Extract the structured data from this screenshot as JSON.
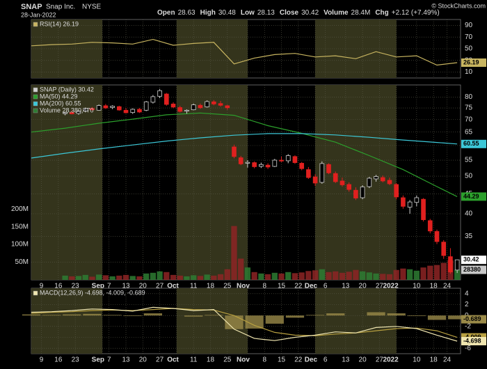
{
  "header": {
    "symbol": "SNAP",
    "name": "Snap Inc.",
    "exchange": "NYSE",
    "date": "28-Jan-2022",
    "quote": [
      {
        "label": "Open",
        "value": "28.63"
      },
      {
        "label": "High",
        "value": "30.48"
      },
      {
        "label": "Low",
        "value": "28.13"
      },
      {
        "label": "Close",
        "value": "30.42"
      },
      {
        "label": "Volume",
        "value": "28.4M"
      },
      {
        "label": "Chg",
        "value": "+2.12 (+7.49%)"
      }
    ],
    "watermark": "© StockCharts.com"
  },
  "chart_data": [
    {
      "type": "line",
      "xlim": [
        0,
        127
      ],
      "ylim": [
        0,
        100
      ],
      "yticks": [
        10,
        30,
        50,
        70,
        90
      ],
      "x": [
        0,
        6,
        12,
        18,
        24,
        30,
        36,
        42,
        48,
        54,
        60,
        66,
        72,
        78,
        84,
        90,
        96,
        102,
        108,
        114,
        120,
        126
      ],
      "series": [
        {
          "name": "RSI(14) 26.19",
          "color": "#c8b560",
          "last_label": "26.19",
          "values": [
            55,
            57,
            58,
            61,
            60,
            58,
            66,
            56,
            59,
            61,
            24,
            34,
            40,
            42,
            36,
            38,
            33,
            45,
            36,
            38,
            22,
            26.19
          ]
        }
      ]
    },
    {
      "type": "candlestick",
      "log_scale": true,
      "grid": true,
      "xlim": [
        0,
        127
      ],
      "ylim": [
        27,
        86
      ],
      "yticks": [
        30,
        35,
        40,
        45,
        50,
        55,
        60,
        65,
        70,
        75,
        80
      ],
      "xticks": [
        {
          "value": 3,
          "label": "9"
        },
        {
          "value": 8,
          "label": "16"
        },
        {
          "value": 13,
          "label": "23"
        },
        {
          "value": 21,
          "label": "Sep"
        },
        {
          "value": 23,
          "label": "7"
        },
        {
          "value": 28,
          "label": "13"
        },
        {
          "value": 33,
          "label": "20"
        },
        {
          "value": 38,
          "label": "27"
        },
        {
          "value": 43,
          "label": "Oct"
        },
        {
          "value": 48,
          "label": "11"
        },
        {
          "value": 53,
          "label": "18"
        },
        {
          "value": 58,
          "label": "25"
        },
        {
          "value": 64,
          "label": "Nov"
        },
        {
          "value": 69,
          "label": "8"
        },
        {
          "value": 74,
          "label": "15"
        },
        {
          "value": 79,
          "label": "22"
        },
        {
          "value": 84,
          "label": "Dec"
        },
        {
          "value": 87,
          "label": "6"
        },
        {
          "value": 93,
          "label": "13"
        },
        {
          "value": 98,
          "label": "20"
        },
        {
          "value": 103,
          "label": "27"
        },
        {
          "value": 108,
          "label": "2022"
        },
        {
          "value": 114,
          "label": "10"
        },
        {
          "value": 119,
          "label": "18"
        },
        {
          "value": 123,
          "label": "24"
        }
      ],
      "x": [
        10,
        12,
        14,
        16,
        18,
        20,
        22,
        24,
        26,
        28,
        30,
        32,
        34,
        36,
        38,
        40,
        42,
        44,
        46,
        48,
        50,
        52,
        54,
        56,
        58,
        60,
        62,
        64,
        66,
        68,
        70,
        72,
        74,
        76,
        78,
        80,
        82,
        84,
        86,
        88,
        90,
        92,
        94,
        96,
        98,
        100,
        102,
        104,
        106,
        108,
        110,
        112,
        114,
        116,
        118,
        120,
        122,
        124,
        126
      ],
      "series": [
        {
          "name": "SNAP (Daily) 30.42",
          "color": "#d0d0d0",
          "up_color": "#000000",
          "down_color": "#e0201f",
          "last_label": "30.42",
          "open": [
            72.5,
            73.0,
            72.6,
            73.6,
            74.8,
            74.0,
            76.0,
            75.2,
            75.6,
            74.0,
            73.0,
            74.4,
            74.0,
            77.6,
            80.4,
            81.5,
            76.8,
            75.2,
            73.6,
            74.2,
            76.2,
            75.5,
            77.8,
            77.0,
            76.0,
            59.5,
            55.8,
            54.0,
            54.2,
            53.0,
            53.4,
            53.0,
            55.0,
            54.8,
            56.2,
            54.0,
            52.0,
            49.8,
            48.2,
            53.6,
            50.8,
            48.6,
            47.6,
            46.0,
            44.0,
            47.0,
            49.2,
            49.6,
            48.8,
            47.6,
            44.0,
            41.6,
            42.8,
            43.6,
            38.4,
            36.0,
            33.8,
            31.0,
            28.63
          ],
          "high": [
            73.4,
            73.8,
            74.0,
            75.2,
            75.4,
            76.6,
            76.8,
            76.2,
            76.0,
            75.0,
            74.8,
            75.0,
            78.2,
            81.0,
            84.0,
            82.0,
            77.6,
            76.0,
            74.4,
            77.0,
            77.0,
            78.5,
            78.6,
            78.2,
            76.4,
            60.3,
            56.4,
            55.0,
            54.6,
            54.2,
            54.0,
            55.4,
            56.2,
            57.0,
            56.6,
            54.4,
            52.8,
            50.6,
            54.6,
            54.0,
            51.4,
            49.6,
            48.2,
            46.8,
            47.4,
            49.8,
            50.4,
            50.2,
            49.6,
            48.0,
            44.6,
            43.4,
            44.6,
            43.9,
            38.8,
            36.4,
            34.2,
            32.6,
            30.48
          ],
          "low": [
            71.8,
            72.2,
            72.0,
            73.2,
            73.9,
            73.8,
            74.6,
            74.5,
            73.8,
            72.6,
            72.4,
            72.8,
            73.6,
            77.0,
            79.5,
            76.0,
            74.9,
            73.0,
            72.5,
            74.0,
            74.6,
            75.2,
            76.2,
            75.6,
            74.2,
            55.6,
            53.4,
            52.6,
            52.4,
            52.5,
            52.2,
            52.8,
            54.4,
            54.0,
            53.8,
            51.8,
            49.2,
            47.2,
            47.8,
            50.6,
            48.0,
            47.0,
            45.6,
            43.4,
            43.6,
            46.6,
            48.4,
            48.2,
            47.4,
            43.6,
            41.2,
            40.0,
            41.8,
            38.2,
            35.6,
            33.4,
            30.6,
            28.0,
            28.13
          ],
          "close": [
            72.9,
            72.4,
            73.6,
            74.8,
            74.2,
            76.1,
            75.0,
            75.8,
            74.1,
            72.9,
            74.4,
            73.2,
            77.8,
            80.2,
            83.1,
            76.6,
            75.4,
            73.5,
            74.0,
            76.4,
            75.1,
            77.9,
            76.8,
            76.2,
            75.1,
            56.2,
            53.8,
            54.3,
            52.9,
            53.6,
            52.8,
            55.0,
            54.7,
            56.5,
            54.2,
            52.3,
            49.6,
            48.0,
            53.9,
            51.0,
            48.4,
            47.5,
            46.2,
            43.9,
            46.9,
            49.4,
            49.9,
            48.6,
            47.8,
            44.2,
            41.8,
            42.9,
            44.0,
            38.6,
            36.1,
            33.9,
            31.2,
            28.3,
            30.42
          ]
        }
      ],
      "overlays": [
        {
          "name": "MA(50) 44.29",
          "color": "#2ca02c",
          "last_label": "44.29",
          "x": [
            0,
            10,
            20,
            30,
            40,
            50,
            60,
            70,
            80,
            90,
            100,
            110,
            120,
            126
          ],
          "values": [
            65.0,
            66.5,
            68.5,
            70.2,
            72.0,
            72.8,
            71.8,
            67.5,
            64.5,
            61.2,
            56.5,
            52.0,
            47.0,
            44.29
          ]
        },
        {
          "name": "MA(200) 60.55",
          "color": "#3cc8d8",
          "last_label": "60.55",
          "x": [
            0,
            10,
            20,
            30,
            40,
            50,
            60,
            70,
            80,
            90,
            100,
            110,
            120,
            126
          ],
          "values": [
            55.7,
            57.3,
            58.8,
            60.2,
            61.6,
            62.8,
            63.8,
            64.4,
            64.4,
            63.9,
            63.0,
            62.0,
            61.1,
            60.55
          ]
        }
      ],
      "volume": {
        "name": "Volume 28,380,470",
        "up_color": "#2e7d32",
        "down_color": "#8e2424",
        "last_label": "28380",
        "ylim": [
          0,
          550
        ],
        "yticks": [
          {
            "value": 50,
            "label": "50M"
          },
          {
            "value": 100,
            "label": "100M"
          },
          {
            "value": 150,
            "label": "150M"
          },
          {
            "value": 200,
            "label": "200M"
          }
        ],
        "values": [
          12,
          10,
          11,
          14,
          9,
          15,
          13,
          10,
          12,
          14,
          11,
          10,
          18,
          20,
          24,
          22,
          14,
          12,
          10,
          13,
          11,
          15,
          12,
          16,
          30,
          152,
          60,
          35,
          22,
          18,
          16,
          20,
          18,
          22,
          19,
          21,
          25,
          27,
          30,
          22,
          24,
          20,
          23,
          28,
          24,
          21,
          18,
          17,
          16,
          28,
          32,
          30,
          26,
          35,
          40,
          42,
          48,
          55,
          28.38047
        ]
      }
    },
    {
      "type": "macd",
      "legend": "MACD(12,26,9) -4.698, -4.009, -0.689",
      "xlim": [
        0,
        127
      ],
      "ylim": [
        -7,
        5
      ],
      "yticks": [
        4,
        2,
        0,
        -2,
        -4,
        -6
      ],
      "xticks": [
        {
          "value": 3,
          "label": "9"
        },
        {
          "value": 8,
          "label": "16"
        },
        {
          "value": 13,
          "label": "23"
        },
        {
          "value": 21,
          "label": "Sep"
        },
        {
          "value": 23,
          "label": "7"
        },
        {
          "value": 28,
          "label": "13"
        },
        {
          "value": 33,
          "label": "20"
        },
        {
          "value": 38,
          "label": "27"
        },
        {
          "value": 43,
          "label": "Oct"
        },
        {
          "value": 48,
          "label": "11"
        },
        {
          "value": 53,
          "label": "18"
        },
        {
          "value": 58,
          "label": "25"
        },
        {
          "value": 64,
          "label": "Nov"
        },
        {
          "value": 69,
          "label": "8"
        },
        {
          "value": 74,
          "label": "15"
        },
        {
          "value": 79,
          "label": "22"
        },
        {
          "value": 84,
          "label": "Dec"
        },
        {
          "value": 87,
          "label": "6"
        },
        {
          "value": 93,
          "label": "13"
        },
        {
          "value": 98,
          "label": "20"
        },
        {
          "value": 103,
          "label": "27"
        },
        {
          "value": 108,
          "label": "2022"
        },
        {
          "value": 114,
          "label": "10"
        },
        {
          "value": 119,
          "label": "18"
        },
        {
          "value": 123,
          "label": "24"
        }
      ],
      "x": [
        0,
        6,
        12,
        18,
        24,
        30,
        36,
        42,
        48,
        54,
        60,
        66,
        72,
        78,
        84,
        90,
        96,
        102,
        108,
        114,
        120,
        126
      ],
      "series": [
        {
          "style": "bar",
          "color": "#9a8a48",
          "last_label": "-0.689",
          "values": [
            0.2,
            0.1,
            0.2,
            0.3,
            0.1,
            -0.1,
            0.4,
            0.0,
            -0.2,
            0.1,
            -2.5,
            -2.4,
            -1.5,
            -0.4,
            0.1,
            0.4,
            0.0,
            0.6,
            0.4,
            -0.1,
            -0.8,
            -0.689
          ]
        },
        {
          "style": "line",
          "color": "#b8a040",
          "last_label": "-4.009",
          "values": [
            0.4,
            0.6,
            0.7,
            0.9,
            1.0,
            0.9,
            1.1,
            1.3,
            1.1,
            1.0,
            0.0,
            -1.8,
            -3.1,
            -3.6,
            -3.7,
            -3.4,
            -3.2,
            -2.8,
            -2.4,
            -2.3,
            -2.8,
            -4.009
          ]
        },
        {
          "style": "line",
          "color": "#f0e6b0",
          "last_label": "-4.698",
          "values": [
            0.6,
            0.7,
            0.9,
            1.2,
            1.1,
            0.8,
            1.5,
            1.3,
            0.9,
            1.1,
            -2.5,
            -4.2,
            -4.6,
            -4.0,
            -3.6,
            -3.0,
            -3.2,
            -2.2,
            -2.0,
            -2.4,
            -3.6,
            -4.698
          ]
        }
      ]
    }
  ]
}
